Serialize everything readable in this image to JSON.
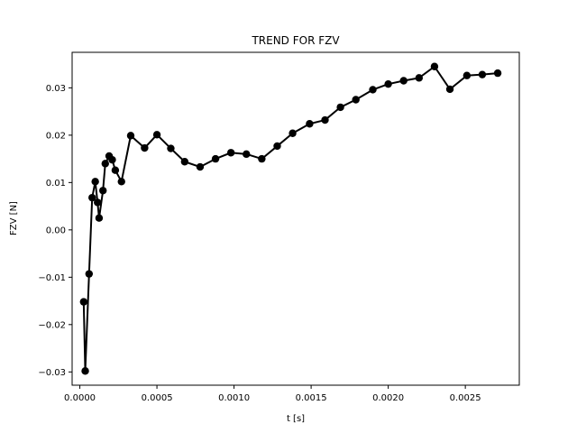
{
  "chart_data": {
    "type": "line",
    "title": "TREND FOR FZV",
    "xlabel": "t [s]",
    "ylabel": "FZV [N]",
    "xlim": [
      -5e-05,
      0.00285
    ],
    "ylim": [
      -0.0328,
      0.0375
    ],
    "xticks": [
      0.0,
      0.0005,
      0.001,
      0.0015,
      0.002,
      0.0025
    ],
    "xtick_labels": [
      "0.0000",
      "0.0005",
      "0.0010",
      "0.0015",
      "0.0020",
      "0.0025"
    ],
    "yticks": [
      -0.03,
      -0.02,
      -0.01,
      0.0,
      0.01,
      0.02,
      0.03
    ],
    "ytick_labels": [
      "−0.03",
      "−0.02",
      "−0.01",
      "0.00",
      "0.01",
      "0.02",
      "0.03"
    ],
    "grid": false,
    "legend": "none",
    "series": [
      {
        "color": "#000000",
        "marker": "circle",
        "x": [
          2.5e-05,
          3.5e-05,
          6e-05,
          8e-05,
          0.0001,
          0.000115,
          0.000125,
          0.00015,
          0.000165,
          0.00019,
          0.00021,
          0.00023,
          0.00027,
          0.00033,
          0.00042,
          0.0005,
          0.00059,
          0.00068,
          0.00078,
          0.00088,
          0.00098,
          0.00108,
          0.00118,
          0.00128,
          0.00138,
          0.00149,
          0.00159,
          0.00169,
          0.00179,
          0.0019,
          0.002,
          0.0021,
          0.0022,
          0.0023,
          0.0024,
          0.00251,
          0.00261,
          0.00271
        ],
        "y": [
          -0.0152,
          -0.0298,
          -0.0093,
          0.0068,
          0.0102,
          0.0058,
          0.0025,
          0.0083,
          0.014,
          0.0156,
          0.0148,
          0.0126,
          0.0102,
          0.0199,
          0.0173,
          0.0201,
          0.0172,
          0.0144,
          0.0133,
          0.015,
          0.0163,
          0.016,
          0.015,
          0.0177,
          0.0204,
          0.0224,
          0.0232,
          0.0259,
          0.0275,
          0.0296,
          0.0308,
          0.0315,
          0.0321,
          0.0345,
          0.0297,
          0.0326,
          0.0328,
          0.0331
        ]
      }
    ]
  }
}
